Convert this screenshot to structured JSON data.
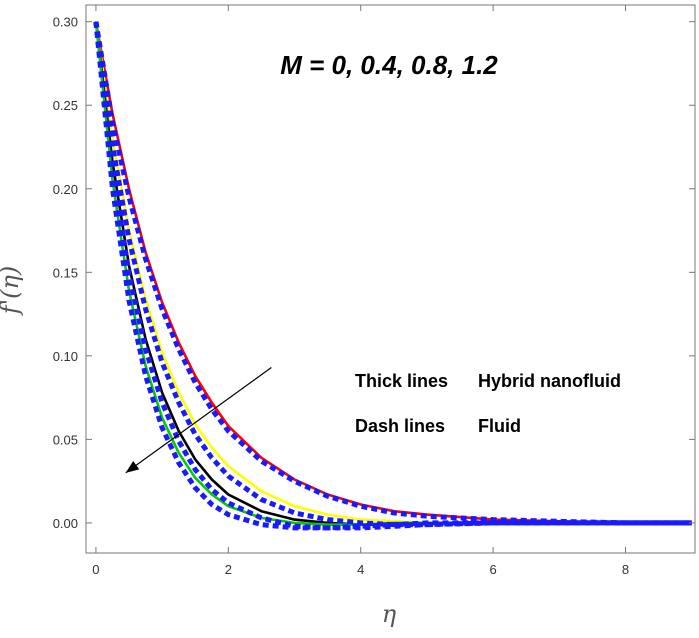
{
  "chart_data": {
    "type": "line",
    "title": "",
    "xlabel": "η",
    "ylabel": "f'(η)",
    "xlim": [
      -0.15,
      9.05
    ],
    "ylim": [
      -0.018,
      0.31
    ],
    "xticks": [
      0,
      2,
      4,
      6,
      8
    ],
    "yticks": [
      0.0,
      0.05,
      0.1,
      0.15,
      0.2,
      0.25,
      0.3
    ],
    "xtick_labels": [
      "0",
      "2",
      "4",
      "6",
      "8"
    ],
    "ytick_labels": [
      "0.00",
      "0.05",
      "0.10",
      "0.15",
      "0.20",
      "0.25",
      "0.30"
    ],
    "grid": false,
    "annotation": "M = 0, 0.4, 0.8, 1.2",
    "arrow": {
      "from": [
        2.65,
        0.093
      ],
      "to": [
        0.45,
        0.03
      ]
    },
    "legend": [
      {
        "style": "Thick lines",
        "meaning": "Hybrid nanofluid"
      },
      {
        "style": "Dash lines",
        "meaning": "Fluid"
      }
    ],
    "x": [
      0,
      0.25,
      0.5,
      0.75,
      1.0,
      1.25,
      1.5,
      1.75,
      2.0,
      2.5,
      3.0,
      3.5,
      4.0,
      4.5,
      5.0,
      6.0,
      7.0,
      8.0,
      9.0
    ],
    "series": [
      {
        "color": "#ff0000",
        "dash": false,
        "values": [
          0.3,
          0.245,
          0.2,
          0.162,
          0.132,
          0.108,
          0.088,
          0.072,
          0.058,
          0.039,
          0.026,
          0.017,
          0.011,
          0.007,
          0.005,
          0.002,
          0.001,
          0.0,
          0.0
        ]
      },
      {
        "color": "#1a1aff",
        "dash": true,
        "values": [
          0.3,
          0.24,
          0.195,
          0.158,
          0.128,
          0.104,
          0.084,
          0.068,
          0.055,
          0.037,
          0.025,
          0.016,
          0.01,
          0.006,
          0.004,
          0.002,
          0.001,
          0.0,
          0.0
        ]
      },
      {
        "color": "#ffff00",
        "dash": false,
        "values": [
          0.3,
          0.23,
          0.175,
          0.134,
          0.102,
          0.078,
          0.059,
          0.045,
          0.034,
          0.019,
          0.01,
          0.005,
          0.002,
          0.001,
          0.0,
          0.0,
          0.0,
          0.0,
          0.0
        ]
      },
      {
        "color": "#1a1aff",
        "dash": true,
        "values": [
          0.3,
          0.226,
          0.17,
          0.128,
          0.096,
          0.072,
          0.053,
          0.039,
          0.028,
          0.014,
          0.006,
          0.002,
          0.0,
          -0.001,
          -0.001,
          0.0,
          0.0,
          0.0,
          0.0
        ]
      },
      {
        "color": "#000000",
        "dash": false,
        "values": [
          0.3,
          0.216,
          0.154,
          0.11,
          0.078,
          0.055,
          0.038,
          0.026,
          0.017,
          0.007,
          0.002,
          0.0,
          -0.001,
          -0.001,
          0.0,
          0.0,
          0.0,
          0.0,
          0.0
        ]
      },
      {
        "color": "#1a1aff",
        "dash": true,
        "values": [
          0.3,
          0.212,
          0.149,
          0.104,
          0.072,
          0.049,
          0.032,
          0.02,
          0.012,
          0.003,
          -0.002,
          -0.003,
          -0.003,
          -0.002,
          -0.001,
          0.0,
          0.0,
          0.0,
          0.0
        ]
      },
      {
        "color": "#00cc00",
        "dash": false,
        "values": [
          0.3,
          0.205,
          0.139,
          0.094,
          0.063,
          0.042,
          0.027,
          0.017,
          0.01,
          0.003,
          0.0,
          -0.001,
          -0.001,
          0.0,
          0.0,
          0.0,
          0.0,
          0.0,
          0.0
        ]
      },
      {
        "color": "#1a1aff",
        "dash": true,
        "values": [
          0.3,
          0.2,
          0.133,
          0.088,
          0.057,
          0.036,
          0.021,
          0.011,
          0.005,
          -0.001,
          -0.003,
          -0.003,
          -0.002,
          -0.001,
          0.0,
          0.0,
          0.0,
          0.0,
          0.0
        ]
      }
    ]
  }
}
